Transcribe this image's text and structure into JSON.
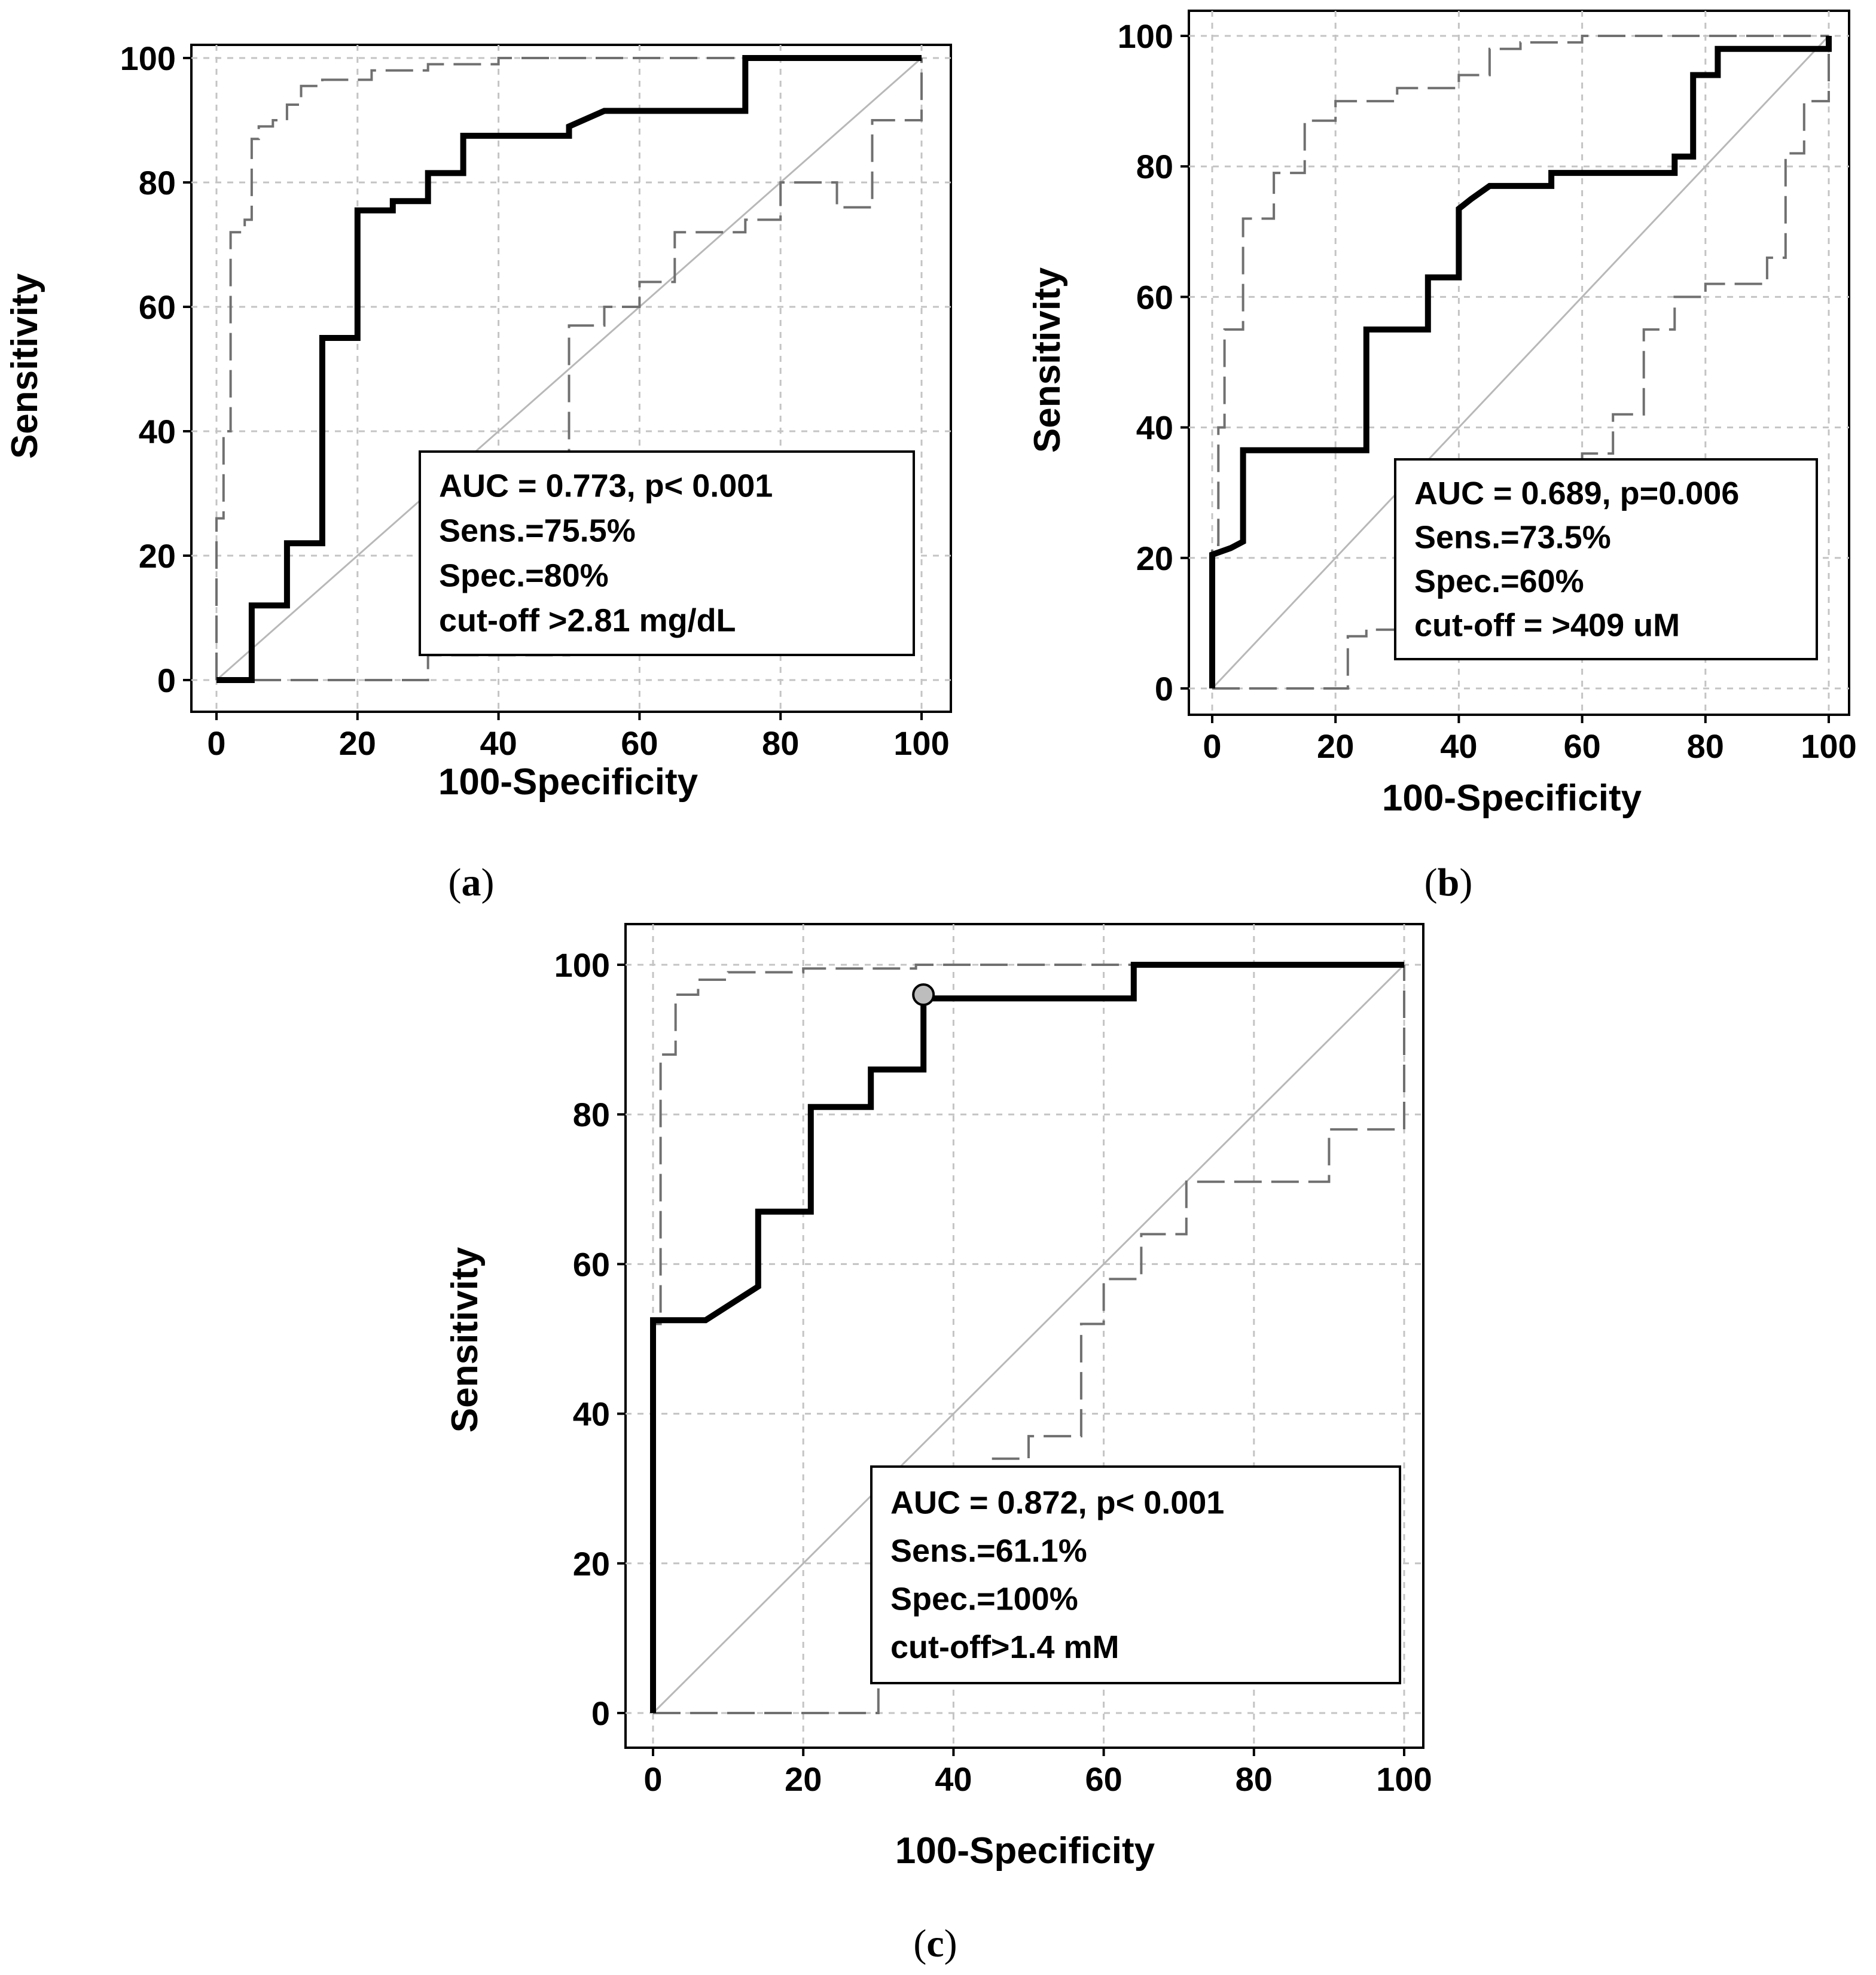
{
  "chart_data": [
    {
      "id": "a",
      "type": "line",
      "caption": "a",
      "xlabel": "100-Specificity",
      "ylabel": "Sensitivity",
      "xlim": [
        0,
        100
      ],
      "ylim": [
        0,
        100
      ],
      "xticks": [
        0,
        20,
        40,
        60,
        80,
        100
      ],
      "yticks": [
        0,
        20,
        40,
        60,
        80,
        100
      ],
      "grid": true,
      "stats_box": [
        "AUC = 0.773, p< 0.001",
        "Sens.=75.5%",
        "Spec.=80%",
        "cut-off >2.81 mg/dL"
      ],
      "stats_box_position": "bottom-right",
      "series": [
        {
          "name": "ROC curve",
          "style": "solid-thick",
          "color": "#000000",
          "points": [
            [
              0,
              0
            ],
            [
              5,
              0
            ],
            [
              5,
              12
            ],
            [
              10,
              12
            ],
            [
              10,
              22
            ],
            [
              15,
              22
            ],
            [
              15,
              55
            ],
            [
              20,
              55
            ],
            [
              20,
              75.5
            ],
            [
              25,
              75.5
            ],
            [
              25,
              77
            ],
            [
              30,
              77
            ],
            [
              30,
              81.5
            ],
            [
              35,
              81.5
            ],
            [
              35,
              87.5
            ],
            [
              50,
              87.5
            ],
            [
              50,
              89
            ],
            [
              55,
              91.5
            ],
            [
              75,
              91.5
            ],
            [
              75,
              100
            ],
            [
              100,
              100
            ]
          ]
        },
        {
          "name": "Upper 95% CI",
          "style": "dashed",
          "color": "#707070",
          "points": [
            [
              0,
              0
            ],
            [
              0,
              26
            ],
            [
              1,
              26
            ],
            [
              1,
              40
            ],
            [
              2,
              40
            ],
            [
              2,
              72
            ],
            [
              4,
              72
            ],
            [
              4,
              74
            ],
            [
              5,
              74
            ],
            [
              5,
              87
            ],
            [
              6,
              87
            ],
            [
              6,
              89
            ],
            [
              8,
              89
            ],
            [
              8,
              90
            ],
            [
              10,
              90
            ],
            [
              10,
              92.5
            ],
            [
              12,
              92.5
            ],
            [
              12,
              95.5
            ],
            [
              15,
              95.5
            ],
            [
              15,
              96.5
            ],
            [
              22,
              96.5
            ],
            [
              22,
              98
            ],
            [
              30,
              98
            ],
            [
              30,
              99
            ],
            [
              40,
              99
            ],
            [
              40,
              100
            ],
            [
              100,
              100
            ]
          ]
        },
        {
          "name": "Lower 95% CI",
          "style": "dashed",
          "color": "#707070",
          "points": [
            [
              0,
              0
            ],
            [
              30,
              0
            ],
            [
              30,
              4
            ],
            [
              50,
              4
            ],
            [
              50,
              57
            ],
            [
              55,
              57
            ],
            [
              55,
              60
            ],
            [
              60,
              60
            ],
            [
              60,
              64
            ],
            [
              65,
              64
            ],
            [
              65,
              72
            ],
            [
              75,
              72
            ],
            [
              75,
              74
            ],
            [
              80,
              74
            ],
            [
              80,
              80
            ],
            [
              88,
              80
            ],
            [
              88,
              76
            ],
            [
              93,
              76
            ],
            [
              93,
              90
            ],
            [
              100,
              90
            ],
            [
              100,
              100
            ]
          ]
        },
        {
          "name": "Reference line",
          "style": "thin",
          "color": "#b8b8b8",
          "points": [
            [
              0,
              0
            ],
            [
              100,
              100
            ]
          ]
        }
      ]
    },
    {
      "id": "b",
      "type": "line",
      "caption": "b",
      "xlabel": "100-Specificity",
      "ylabel": "Sensitivity",
      "xlim": [
        0,
        100
      ],
      "ylim": [
        0,
        100
      ],
      "xticks": [
        0,
        20,
        40,
        60,
        80,
        100
      ],
      "yticks": [
        0,
        20,
        40,
        60,
        80,
        100
      ],
      "grid": true,
      "stats_box": [
        "AUC = 0.689, p=0.006",
        "Sens.=73.5%",
        "Spec.=60%",
        "cut-off = >409 uM"
      ],
      "stats_box_position": "bottom-right",
      "series": [
        {
          "name": "ROC curve",
          "style": "solid-thick",
          "color": "#000000",
          "points": [
            [
              0,
              0
            ],
            [
              0,
              20.5
            ],
            [
              3,
              21.5
            ],
            [
              5,
              22.5
            ],
            [
              5,
              36.5
            ],
            [
              25,
              36.5
            ],
            [
              25,
              55
            ],
            [
              35,
              55
            ],
            [
              35,
              63
            ],
            [
              40,
              63
            ],
            [
              40,
              73.5
            ],
            [
              42,
              75
            ],
            [
              45,
              77
            ],
            [
              55,
              77
            ],
            [
              55,
              79
            ],
            [
              75,
              79
            ],
            [
              75,
              81.5
            ],
            [
              78,
              81.5
            ],
            [
              78,
              94
            ],
            [
              82,
              94
            ],
            [
              82,
              98
            ],
            [
              100,
              98
            ],
            [
              100,
              100
            ]
          ]
        },
        {
          "name": "Upper 95% CI",
          "style": "dashed",
          "color": "#707070",
          "points": [
            [
              0,
              0
            ],
            [
              0,
              22
            ],
            [
              1,
              22
            ],
            [
              1,
              40
            ],
            [
              2,
              40
            ],
            [
              2,
              55
            ],
            [
              5,
              55
            ],
            [
              5,
              72
            ],
            [
              10,
              72
            ],
            [
              10,
              79
            ],
            [
              15,
              79
            ],
            [
              15,
              87
            ],
            [
              20,
              87
            ],
            [
              20,
              90
            ],
            [
              30,
              90
            ],
            [
              30,
              92
            ],
            [
              40,
              92
            ],
            [
              40,
              94
            ],
            [
              45,
              94
            ],
            [
              45,
              98
            ],
            [
              50,
              98
            ],
            [
              50,
              99
            ],
            [
              60,
              99
            ],
            [
              60,
              100
            ],
            [
              100,
              100
            ]
          ]
        },
        {
          "name": "Lower 95% CI",
          "style": "dashed",
          "color": "#707070",
          "points": [
            [
              0,
              0
            ],
            [
              22,
              0
            ],
            [
              22,
              8
            ],
            [
              25,
              8
            ],
            [
              25,
              9
            ],
            [
              30,
              9
            ],
            [
              30,
              18
            ],
            [
              60,
              18
            ],
            [
              60,
              36
            ],
            [
              65,
              36
            ],
            [
              65,
              42
            ],
            [
              70,
              42
            ],
            [
              70,
              55
            ],
            [
              75,
              55
            ],
            [
              75,
              60
            ],
            [
              80,
              60
            ],
            [
              80,
              62
            ],
            [
              90,
              62
            ],
            [
              90,
              66
            ],
            [
              93,
              66
            ],
            [
              93,
              82
            ],
            [
              96,
              82
            ],
            [
              96,
              90
            ],
            [
              100,
              90
            ],
            [
              100,
              100
            ]
          ]
        },
        {
          "name": "Reference line",
          "style": "thin",
          "color": "#b8b8b8",
          "points": [
            [
              0,
              0
            ],
            [
              100,
              100
            ]
          ]
        }
      ]
    },
    {
      "id": "c",
      "type": "line",
      "caption": "c",
      "xlabel": "100-Specificity",
      "ylabel": "Sensitivity",
      "xlim": [
        0,
        100
      ],
      "ylim": [
        0,
        100
      ],
      "xticks": [
        0,
        20,
        40,
        60,
        80,
        100
      ],
      "yticks": [
        0,
        20,
        40,
        60,
        80,
        100
      ],
      "grid": true,
      "stats_box": [
        "AUC = 0.872, p< 0.001",
        "Sens.=61.1%",
        "Spec.=100%",
        "cut-off>1.4 mM"
      ],
      "stats_box_position": "bottom-right",
      "highlight_point": [
        36,
        96
      ],
      "series": [
        {
          "name": "ROC curve",
          "style": "solid-thick",
          "color": "#000000",
          "points": [
            [
              0,
              0
            ],
            [
              0,
              52.5
            ],
            [
              7,
              52.5
            ],
            [
              14,
              57
            ],
            [
              14,
              67
            ],
            [
              21,
              67
            ],
            [
              21,
              81
            ],
            [
              29,
              81
            ],
            [
              29,
              86
            ],
            [
              36,
              86
            ],
            [
              36,
              95.5
            ],
            [
              64,
              95.5
            ],
            [
              64,
              100
            ],
            [
              100,
              100
            ]
          ]
        },
        {
          "name": "Upper 95% CI",
          "style": "dashed",
          "color": "#707070",
          "points": [
            [
              0,
              0
            ],
            [
              0,
              52
            ],
            [
              1,
              52
            ],
            [
              1,
              88
            ],
            [
              3,
              88
            ],
            [
              3,
              96
            ],
            [
              6,
              96
            ],
            [
              6,
              98
            ],
            [
              10,
              98
            ],
            [
              10,
              99
            ],
            [
              20,
              99
            ],
            [
              20,
              99.5
            ],
            [
              35,
              99.5
            ],
            [
              35,
              100
            ],
            [
              100,
              100
            ]
          ]
        },
        {
          "name": "Lower 95% CI",
          "style": "dashed",
          "color": "#707070",
          "points": [
            [
              0,
              0
            ],
            [
              30,
              0
            ],
            [
              30,
              4
            ],
            [
              40,
              4
            ],
            [
              40,
              25
            ],
            [
              45,
              25
            ],
            [
              45,
              34
            ],
            [
              50,
              34
            ],
            [
              50,
              37
            ],
            [
              57,
              37
            ],
            [
              57,
              52
            ],
            [
              60,
              52
            ],
            [
              60,
              58
            ],
            [
              65,
              58
            ],
            [
              65,
              64
            ],
            [
              71,
              64
            ],
            [
              71,
              71
            ],
            [
              90,
              71
            ],
            [
              90,
              78
            ],
            [
              100,
              78
            ],
            [
              100,
              100
            ]
          ]
        },
        {
          "name": "Reference line",
          "style": "thin",
          "color": "#b8b8b8",
          "points": [
            [
              0,
              0
            ],
            [
              100,
              100
            ]
          ]
        }
      ]
    }
  ]
}
